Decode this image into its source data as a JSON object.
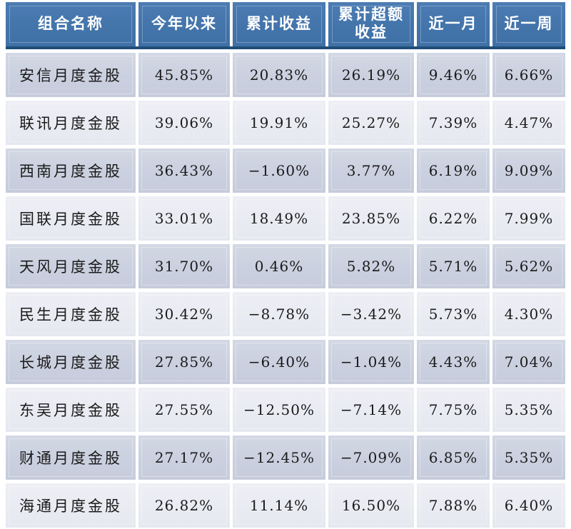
{
  "chart_data": {
    "type": "table",
    "title": "",
    "columns": [
      "组合名称",
      "今年以来",
      "累计收益",
      "累计超额收益",
      "近一月",
      "近一周"
    ],
    "rows": [
      [
        "安信月度金股",
        "45.85%",
        "20.83%",
        "26.19%",
        "9.46%",
        "6.66%"
      ],
      [
        "联讯月度金股",
        "39.06%",
        "19.91%",
        "25.27%",
        "7.39%",
        "4.47%"
      ],
      [
        "西南月度金股",
        "36.43%",
        "−1.60%",
        "3.77%",
        "6.19%",
        "9.09%"
      ],
      [
        "国联月度金股",
        "33.01%",
        "18.49%",
        "23.85%",
        "6.22%",
        "7.99%"
      ],
      [
        "天风月度金股",
        "31.70%",
        "0.46%",
        "5.82%",
        "5.71%",
        "5.62%"
      ],
      [
        "民生月度金股",
        "30.42%",
        "−8.78%",
        "−3.42%",
        "5.73%",
        "4.30%"
      ],
      [
        "长城月度金股",
        "27.85%",
        "−6.40%",
        "−1.04%",
        "4.43%",
        "7.04%"
      ],
      [
        "东吴月度金股",
        "27.55%",
        "−12.50%",
        "−7.14%",
        "7.75%",
        "5.35%"
      ],
      [
        "财通月度金股",
        "27.17%",
        "−12.45%",
        "−7.09%",
        "6.85%",
        "5.35%"
      ],
      [
        "海通月度金股",
        "26.82%",
        "11.14%",
        "16.50%",
        "7.88%",
        "6.40%"
      ]
    ]
  },
  "colors": {
    "header_bg": "#4374AA",
    "header_text": "#FFFFFF",
    "header_bottom_border": "#1F4E79",
    "row_dark_bg": "#CAD0DF",
    "row_light_bg": "#E9EBF2",
    "cell_text": "#1A1A1A",
    "gap": "#FFFFFF"
  }
}
